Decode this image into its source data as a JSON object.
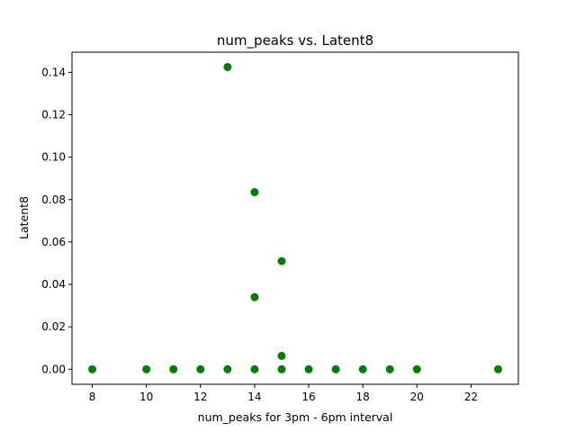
{
  "chart_data": {
    "type": "scatter",
    "title": "num_peaks vs. Latent8",
    "xlabel": "num_peaks for 3pm - 6pm interval",
    "ylabel": "Latent8",
    "xlim": [
      7.25,
      23.75
    ],
    "ylim": [
      -0.0071,
      0.1495
    ],
    "xticks": [
      8,
      10,
      12,
      14,
      16,
      18,
      20,
      22
    ],
    "xtick_labels": [
      "8",
      "10",
      "12",
      "14",
      "16",
      "18",
      "20",
      "22"
    ],
    "yticks": [
      0.0,
      0.02,
      0.04,
      0.06,
      0.08,
      0.1,
      0.12,
      0.14
    ],
    "ytick_labels": [
      "0.00",
      "0.02",
      "0.04",
      "0.06",
      "0.08",
      "0.10",
      "0.12",
      "0.14"
    ],
    "grid": false,
    "marker_color": "#008000",
    "series": [
      {
        "x": [
          8,
          10,
          11,
          12,
          13,
          14,
          15,
          16,
          17,
          18,
          19,
          20,
          23,
          13,
          14,
          14,
          15,
          15
        ],
        "y": [
          0,
          0,
          0,
          0,
          0,
          0,
          0,
          0,
          0,
          0,
          0,
          0,
          0,
          0.1425,
          0.0835,
          0.034,
          0.051,
          0.0063
        ]
      }
    ]
  }
}
